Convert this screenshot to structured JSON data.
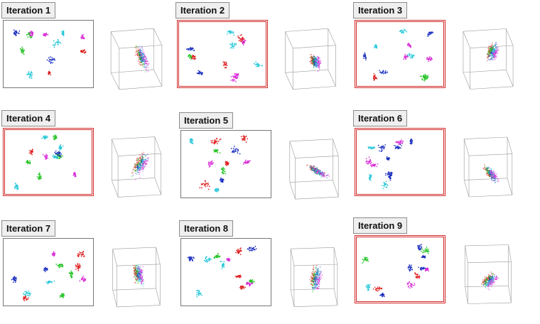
{
  "colors": {
    "red": "#e01f1f",
    "green": "#22c322",
    "blue": "#1b2fbf",
    "cyan": "#29c8d9",
    "magenta": "#d92fd9",
    "selected_border": "#d12a2a"
  },
  "iterations": [
    {
      "label": "Iteration 1",
      "selected": false
    },
    {
      "label": "Iteration 2",
      "selected": true
    },
    {
      "label": "Iteration 3",
      "selected": true
    },
    {
      "label": "Iteration 4",
      "selected": true
    },
    {
      "label": "Iteration 5",
      "selected": false
    },
    {
      "label": "Iteration 6",
      "selected": true
    },
    {
      "label": "Iteration 7",
      "selected": false
    },
    {
      "label": "Iteration 8",
      "selected": false
    },
    {
      "label": "Iteration 9",
      "selected": true
    }
  ]
}
